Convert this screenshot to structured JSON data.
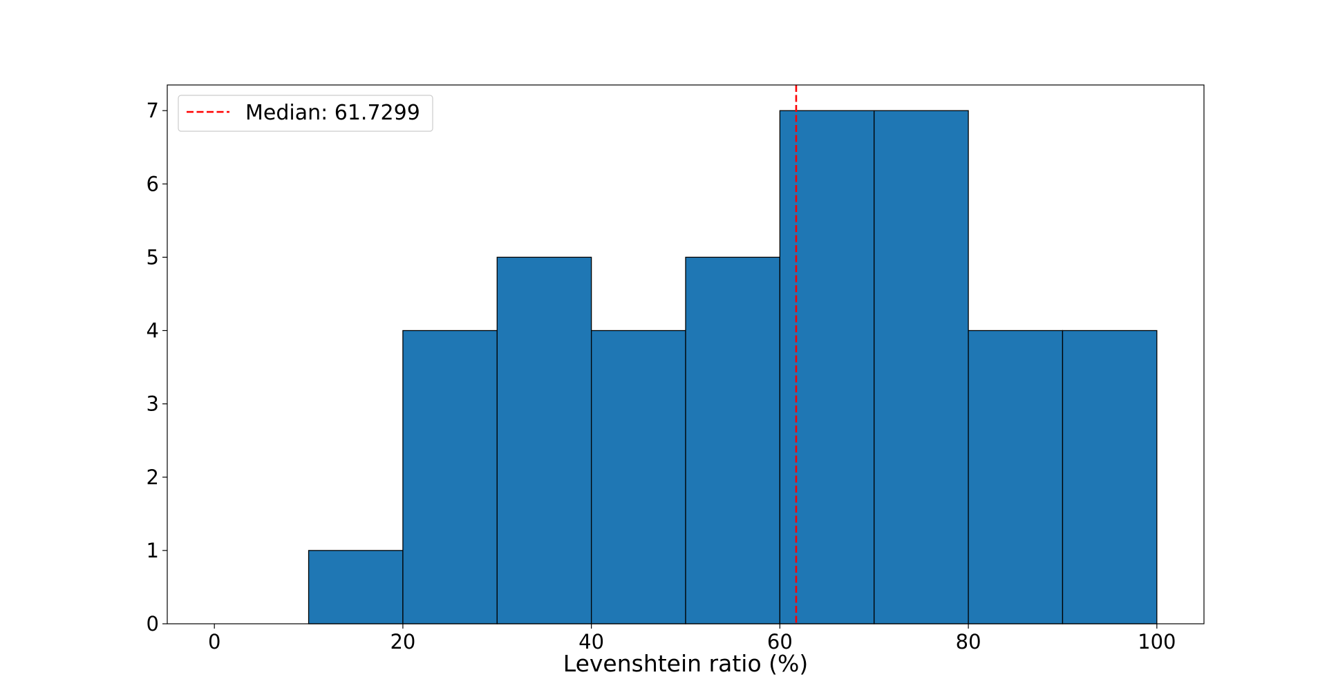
{
  "chart_data": {
    "type": "bar",
    "subtype": "histogram",
    "bins": [
      0,
      10,
      20,
      30,
      40,
      50,
      60,
      70,
      80,
      90,
      100
    ],
    "counts": [
      0,
      1,
      4,
      5,
      4,
      5,
      7,
      7,
      4,
      4
    ],
    "title": "",
    "xlabel": "Levenshtein ratio (%)",
    "ylabel": "",
    "xlim": [
      -5,
      105
    ],
    "ylim": [
      0,
      7.35
    ],
    "xticks": [
      0,
      20,
      40,
      60,
      80,
      100
    ],
    "yticks": [
      0,
      1,
      2,
      3,
      4,
      5,
      6,
      7
    ],
    "bar_color": "#1f77b4",
    "edge_color": "#000000",
    "grid": false,
    "median": {
      "value": 61.7299,
      "label": "Median: 61.7299",
      "color": "#ff0000",
      "style": "dashed"
    },
    "legend": {
      "position": "upper-left"
    }
  }
}
